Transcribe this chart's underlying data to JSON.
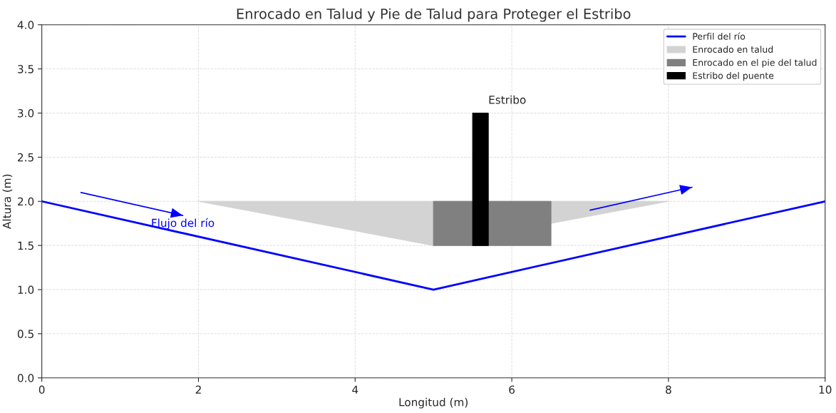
{
  "chart_data": {
    "type": "line",
    "title": "Enrocado en Talud y Pie de Talud para Proteger el Estribo",
    "xlabel": "Longitud (m)",
    "ylabel": "Altura (m)",
    "series": [
      {
        "name": "Perfil del río",
        "color": "#0000ff",
        "x": [
          0,
          5,
          10
        ],
        "values": [
          2,
          1,
          2
        ]
      },
      {
        "name": "Enrocado en talud",
        "color": "#d3d3d3",
        "x": [
          2,
          5,
          8
        ],
        "values": [
          null,
          null,
          null
        ],
        "lower": [
          2,
          1.5,
          2
        ],
        "upper": [
          2,
          2,
          2
        ]
      },
      {
        "name": "Enrocado en el pie del talud",
        "color": "#808080",
        "x": [
          5,
          6.5
        ],
        "values": [
          null,
          null
        ],
        "lower": [
          1.5,
          1.5
        ],
        "upper": [
          2,
          2
        ]
      },
      {
        "name": "Estribo del puente",
        "color": "#000000",
        "x": [
          5.5,
          5.7
        ],
        "values": [
          null,
          null
        ],
        "lower": [
          1.5,
          1.5
        ],
        "upper": [
          3,
          3
        ]
      },
      {
        "color": "#0000ff",
        "x": [
          0.5,
          1.8
        ],
        "values": [
          2.1,
          1.84
        ]
      },
      {
        "color": "#0000ff",
        "x": [
          7,
          8.3
        ],
        "values": [
          1.9,
          2.16
        ]
      }
    ],
    "annotations": [
      "Flujo del río",
      "Estribo"
    ],
    "xlim": [
      0,
      10
    ],
    "xticks": [
      0,
      2,
      4,
      6,
      8,
      10
    ],
    "ylim": [
      0,
      4
    ],
    "yticks": [
      {
        "value": 0,
        "label": "0.0"
      },
      {
        "value": 0.5,
        "label": "0.5"
      },
      {
        "value": 1,
        "label": "1.0"
      },
      {
        "value": 1.5,
        "label": "1.5"
      },
      {
        "value": 2,
        "label": "2.0"
      },
      {
        "value": 2.5,
        "label": "2.5"
      },
      {
        "value": 3,
        "label": "3.0"
      },
      {
        "value": 3.5,
        "label": "3.5"
      },
      {
        "value": 4,
        "label": "4.0"
      }
    ],
    "grid": true,
    "legend": "top right"
  }
}
